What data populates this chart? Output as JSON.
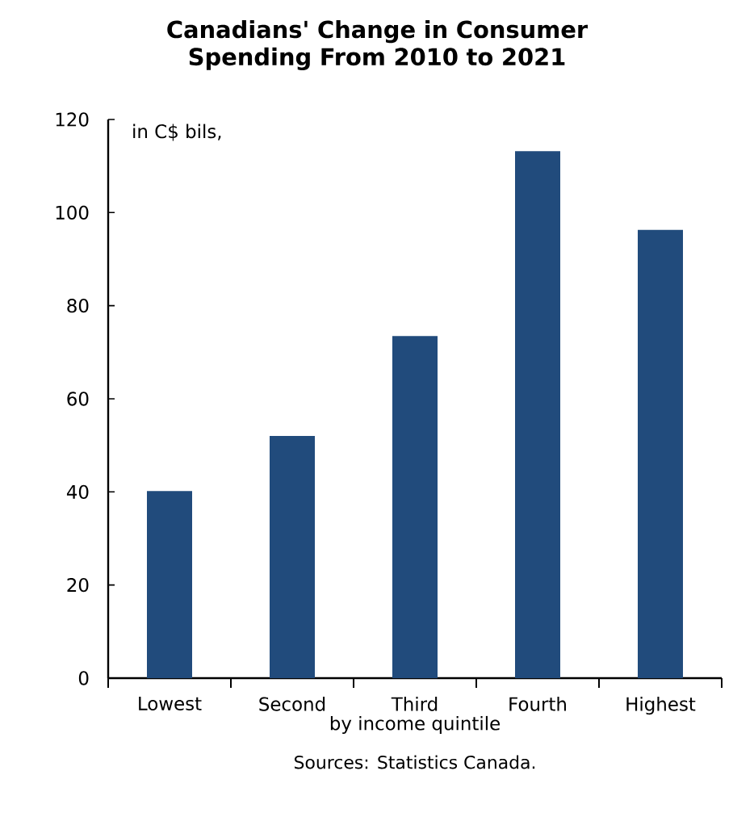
{
  "chart_data": {
    "type": "bar",
    "title": "Canadians' Change in Consumer Spending From 2010 to 2021",
    "ylabel": "in C$ bils,",
    "xlabel": "by income quintile",
    "annotations": [
      "Sources: Statistics Canada."
    ],
    "categories": [
      "Lowest",
      "Second",
      "Third",
      "Fourth",
      "Highest"
    ],
    "values": [
      40.2,
      52.0,
      73.5,
      113.2,
      96.3
    ],
    "color": "#214b7c",
    "ylim": [
      0,
      120
    ],
    "yticks": [
      0,
      20,
      40,
      60,
      80,
      100,
      120
    ],
    "grid": false
  }
}
